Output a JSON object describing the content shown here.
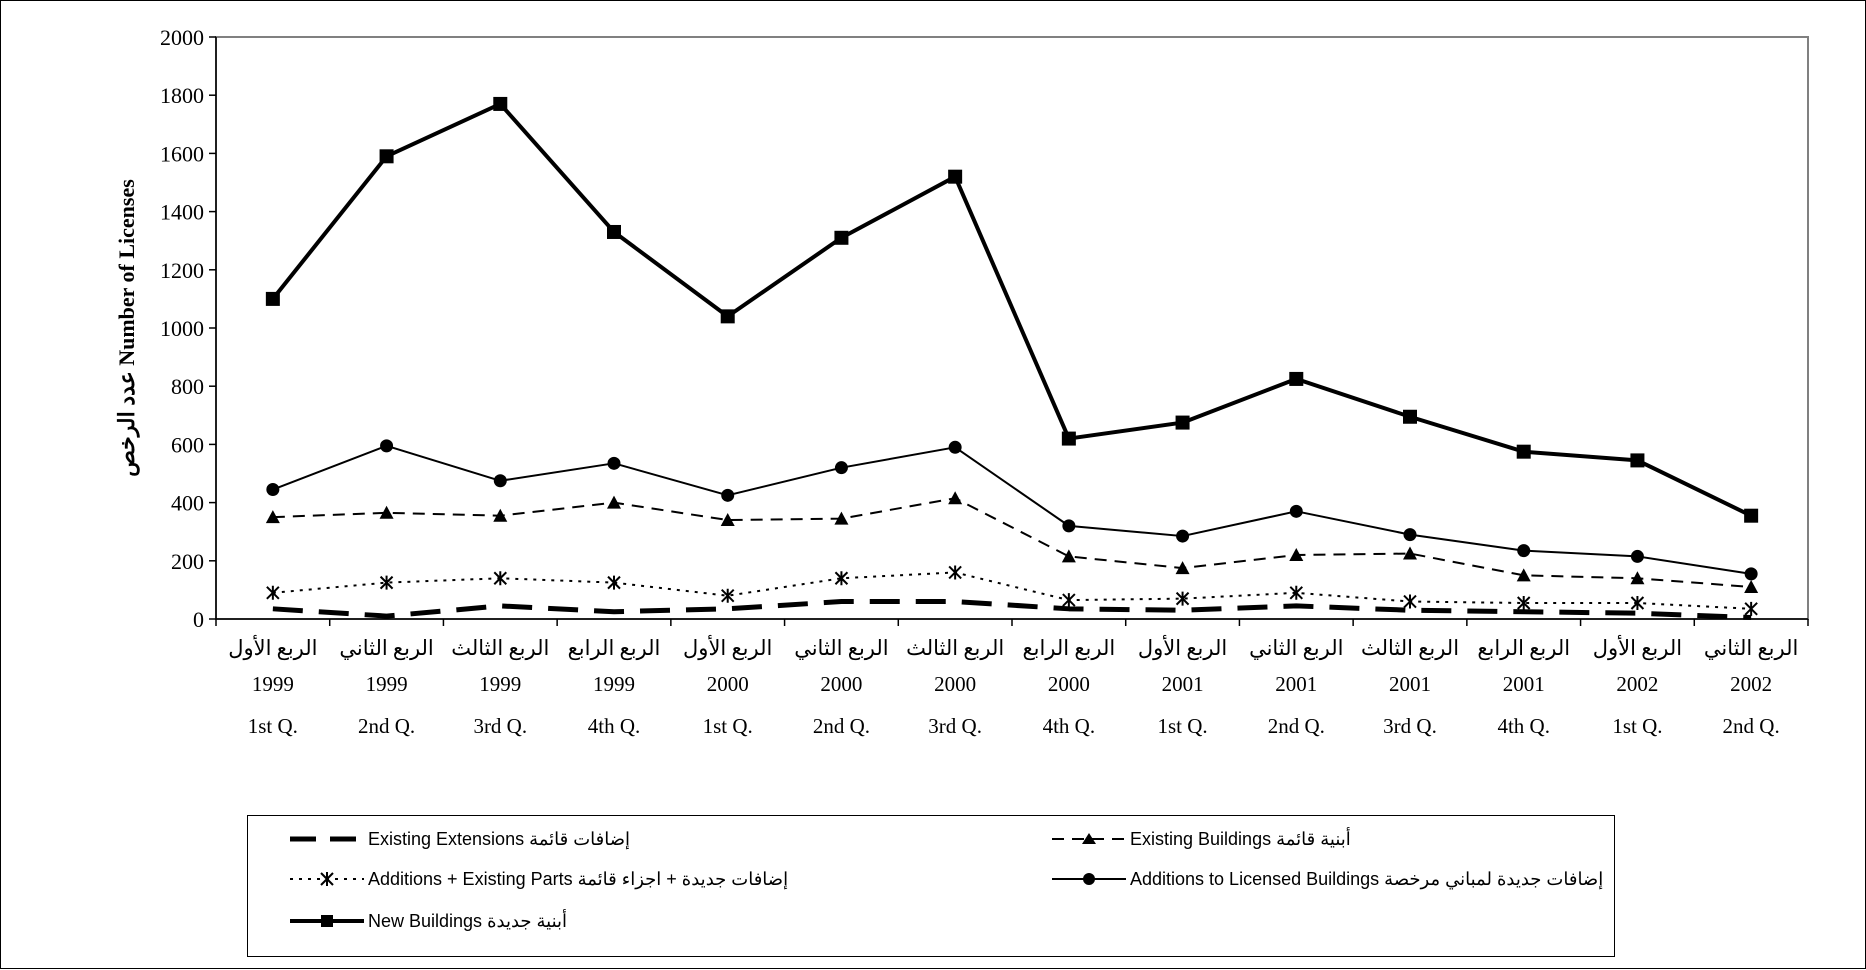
{
  "chart_data": {
    "type": "line",
    "ylabel": "عدد الرخص  Number of Licenses",
    "ylim": [
      0,
      2000
    ],
    "yticks": [
      0,
      200,
      400,
      600,
      800,
      1000,
      1200,
      1400,
      1600,
      1800,
      2000
    ],
    "categories": [
      {
        "ar": "الربع الأول",
        "year": "1999",
        "en": "1st Q."
      },
      {
        "ar": "الربع الثاني",
        "year": "1999",
        "en": "2nd Q."
      },
      {
        "ar": "الربع الثالث",
        "year": "1999",
        "en": "3rd Q."
      },
      {
        "ar": "الربع الرابع",
        "year": "1999",
        "en": "4th Q."
      },
      {
        "ar": "الربع الأول",
        "year": "2000",
        "en": "1st Q."
      },
      {
        "ar": "الربع الثاني",
        "year": "2000",
        "en": "2nd Q."
      },
      {
        "ar": "الربع الثالث",
        "year": "2000",
        "en": "3rd Q."
      },
      {
        "ar": "الربع الرابع",
        "year": "2000",
        "en": "4th Q."
      },
      {
        "ar": "الربع الأول",
        "year": "2001",
        "en": "1st Q."
      },
      {
        "ar": "الربع الثاني",
        "year": "2001",
        "en": "2nd Q."
      },
      {
        "ar": "الربع الثالث",
        "year": "2001",
        "en": "3rd Q."
      },
      {
        "ar": "الربع الرابع",
        "year": "2001",
        "en": "4th Q."
      },
      {
        "ar": "الربع الأول",
        "year": "2002",
        "en": "1st Q."
      },
      {
        "ar": "الربع الثاني",
        "year": "2002",
        "en": "2nd Q."
      }
    ],
    "series": [
      {
        "key": "existing_extensions",
        "name": "Existing Extensions إضافات قائمة",
        "values": [
          35,
          10,
          45,
          25,
          35,
          60,
          60,
          35,
          30,
          45,
          30,
          25,
          20,
          5
        ],
        "color": "#000000",
        "marker": "none",
        "dash": "long"
      },
      {
        "key": "existing_buildings",
        "name": "Existing Buildings أبنية قائمة",
        "values": [
          350,
          365,
          355,
          400,
          340,
          345,
          415,
          215,
          175,
          220,
          225,
          150,
          140,
          110
        ],
        "color": "#000000",
        "marker": "triangle",
        "dash": "medium"
      },
      {
        "key": "additions_existing_parts",
        "name": "Additions + Existing  Parts إضافات جديدة + اجزاء قائمة",
        "values": [
          90,
          125,
          140,
          125,
          80,
          140,
          160,
          65,
          70,
          90,
          60,
          55,
          55,
          35
        ],
        "color": "#000000",
        "marker": "asterisk",
        "dash": "dotted"
      },
      {
        "key": "additions_licensed",
        "name": "Additions to Licensed Buildings إضافات جديدة لمباني مرخصة",
        "values": [
          445,
          595,
          475,
          535,
          425,
          520,
          590,
          320,
          285,
          370,
          290,
          235,
          215,
          155
        ],
        "color": "#000000",
        "marker": "circle",
        "dash": "solid"
      },
      {
        "key": "new_buildings",
        "name": "New  Buildings أبنية جديدة",
        "values": [
          1100,
          1590,
          1770,
          1330,
          1040,
          1310,
          1520,
          620,
          675,
          825,
          695,
          575,
          545,
          355
        ],
        "color": "#000000",
        "marker": "square",
        "dash": "thick"
      }
    ],
    "grid": false,
    "legend_position": "bottom"
  }
}
